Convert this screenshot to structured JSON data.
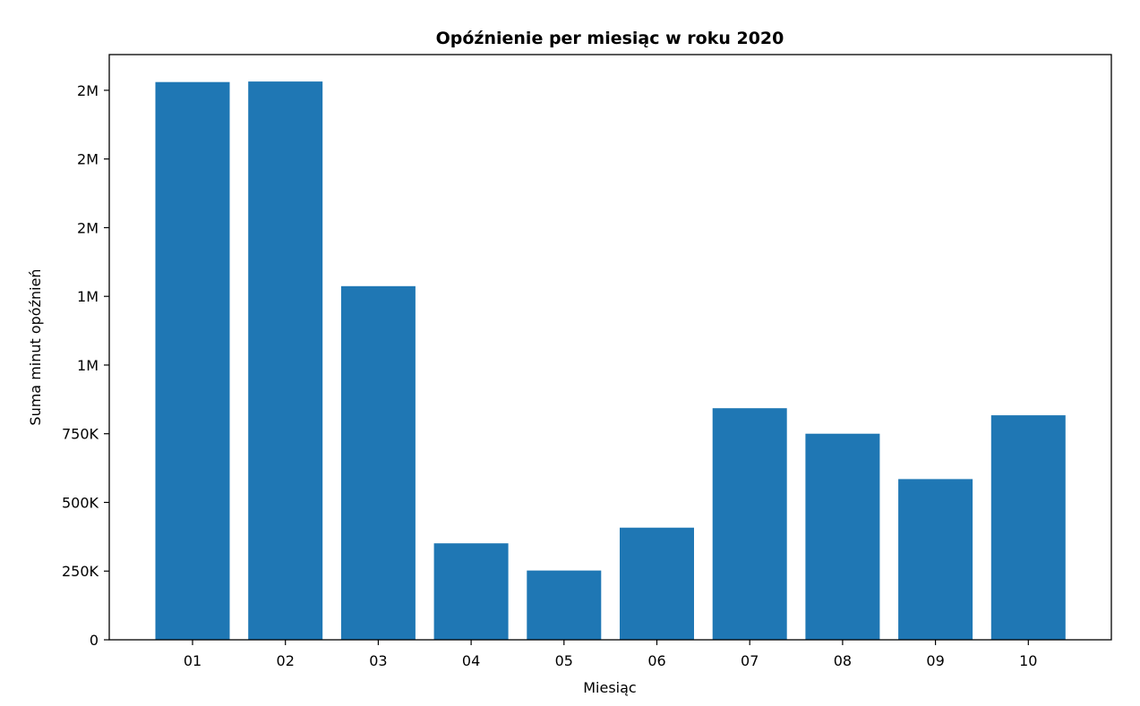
{
  "chart_data": {
    "type": "bar",
    "title": "Opóźnienie per miesiąc w roku 2020",
    "xlabel": "Miesiąc",
    "ylabel": "Suma minut opóźnień",
    "categories": [
      "01",
      "02",
      "03",
      "04",
      "05",
      "06",
      "07",
      "08",
      "09",
      "10"
    ],
    "values": [
      2030000,
      2032000,
      1287000,
      351000,
      252000,
      408000,
      843000,
      750000,
      585000,
      817000
    ],
    "ylim": [
      0,
      2130000
    ],
    "yticks": [
      0,
      250000,
      500000,
      750000,
      1000000,
      1250000,
      1500000,
      1750000,
      2000000
    ],
    "ytick_labels": [
      "0",
      "250K",
      "500K",
      "750K",
      "1M",
      "1M",
      "2M",
      "2M",
      "2M"
    ],
    "bar_color": "#1f77b4",
    "grid": false,
    "legend": false
  }
}
